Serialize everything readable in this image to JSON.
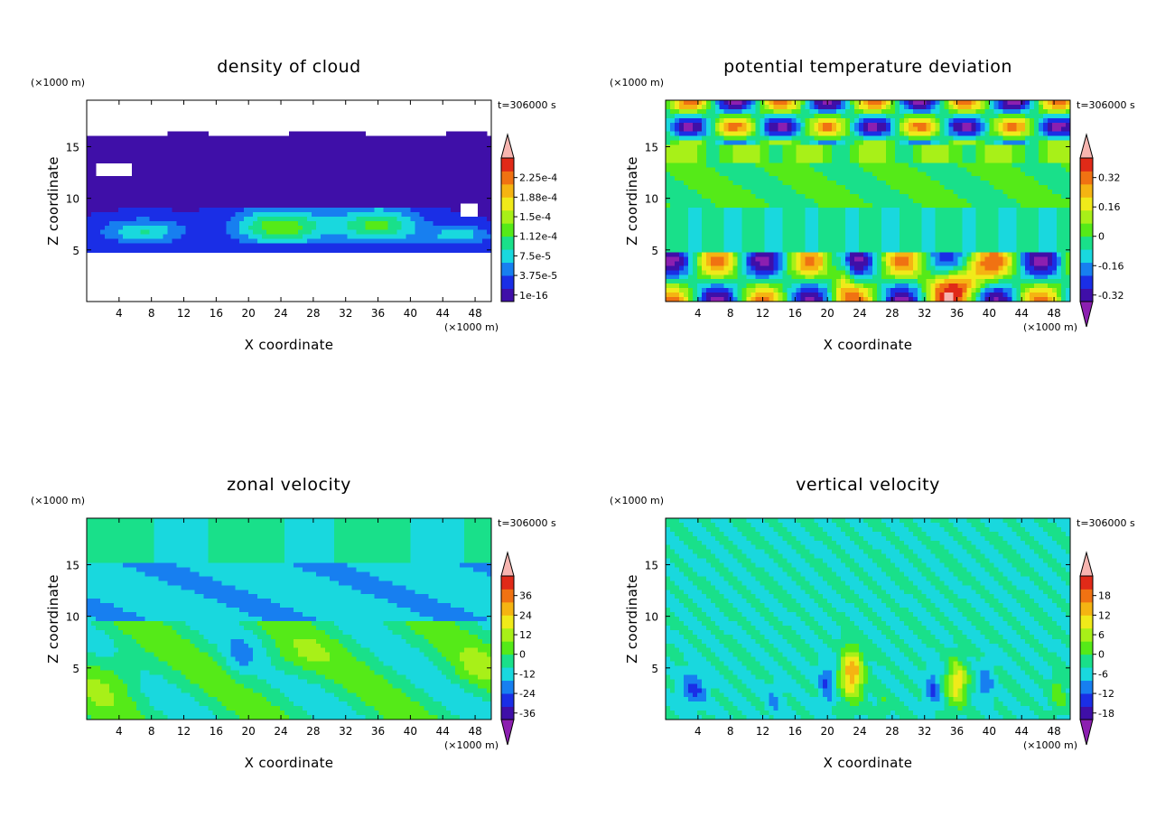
{
  "colors": {
    "scale": [
      "#8c1fb0",
      "#3f0fa8",
      "#1a2ee6",
      "#177ff0",
      "#19d8de",
      "#19e08a",
      "#55ea18",
      "#a8f018",
      "#f0ea1a",
      "#f5b412",
      "#f07212",
      "#e02a18",
      "#f7b5b0"
    ],
    "frame": "#000000",
    "background": "#ffffff"
  },
  "chart_data": [
    {
      "type": "heatmap",
      "id": "cloud",
      "title": "density of cloud",
      "xlabel": "X coordinate",
      "ylabel": "Z coordinate",
      "x_unit": "(×1000 m)",
      "y_unit": "(×1000 m)",
      "time_label": "t=306000 s",
      "xlim": [
        0,
        50
      ],
      "ylim": [
        0,
        19.5
      ],
      "xticks": [
        "4",
        "8",
        "12",
        "16",
        "20",
        "24",
        "28",
        "32",
        "36",
        "40",
        "44",
        "48"
      ],
      "yticks": [
        "5",
        "10",
        "15"
      ],
      "colorbar": {
        "labels": [
          "2.25e-4",
          "1.88e-4",
          "1.5e-4",
          "1.12e-4",
          "7.5e-5",
          "3.75e-5",
          "1e-16"
        ],
        "levels": 10,
        "arrows": "top"
      }
    },
    {
      "type": "heatmap",
      "id": "theta",
      "title": "potential temperature deviation",
      "xlabel": "X coordinate",
      "ylabel": "Z coordinate",
      "x_unit": "(×1000 m)",
      "y_unit": "(×1000 m)",
      "time_label": "t=306000 s",
      "xlim": [
        0,
        50
      ],
      "ylim": [
        0,
        19.5
      ],
      "xticks": [
        "4",
        "8",
        "12",
        "16",
        "20",
        "24",
        "28",
        "32",
        "36",
        "40",
        "44",
        "48"
      ],
      "yticks": [
        "5",
        "10",
        "15"
      ],
      "colorbar": {
        "labels": [
          "0.32",
          "0.16",
          "0",
          "-0.16",
          "-0.32"
        ],
        "levels": 10,
        "arrows": "both"
      }
    },
    {
      "type": "heatmap",
      "id": "u",
      "title": "zonal velocity",
      "xlabel": "X coordinate",
      "ylabel": "Z coordinate",
      "x_unit": "(×1000 m)",
      "y_unit": "(×1000 m)",
      "time_label": "t=306000 s",
      "xlim": [
        0,
        50
      ],
      "ylim": [
        0,
        19.5
      ],
      "xticks": [
        "4",
        "8",
        "12",
        "16",
        "20",
        "24",
        "28",
        "32",
        "36",
        "40",
        "44",
        "48"
      ],
      "yticks": [
        "5",
        "10",
        "15"
      ],
      "colorbar": {
        "labels": [
          "36",
          "24",
          "12",
          "0",
          "-12",
          "-24",
          "-36"
        ],
        "levels": 10,
        "arrows": "both"
      }
    },
    {
      "type": "heatmap",
      "id": "w",
      "title": "vertical velocity",
      "xlabel": "X coordinate",
      "ylabel": "Z coordinate",
      "x_unit": "(×1000 m)",
      "y_unit": "(×1000 m)",
      "time_label": "t=306000 s",
      "xlim": [
        0,
        50
      ],
      "ylim": [
        0,
        19.5
      ],
      "xticks": [
        "4",
        "8",
        "12",
        "16",
        "20",
        "24",
        "28",
        "32",
        "36",
        "40",
        "44",
        "48"
      ],
      "yticks": [
        "5",
        "10",
        "15"
      ],
      "colorbar": {
        "labels": [
          "18",
          "12",
          "6",
          "0",
          "-6",
          "-12",
          "-18"
        ],
        "levels": 10,
        "arrows": "both"
      }
    }
  ]
}
